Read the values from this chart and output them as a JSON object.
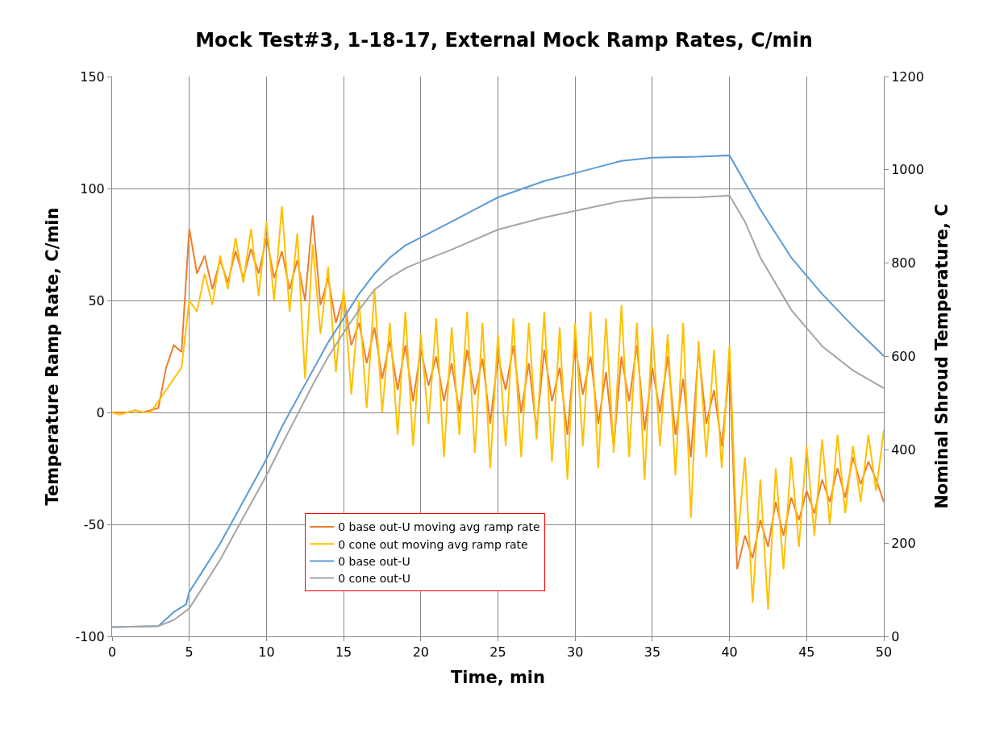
{
  "chart_data": {
    "type": "line",
    "title": "Mock Test#3, 1-18-17, External Mock Ramp Rates, C/min",
    "xlabel": "Time, min",
    "ylabel": "Temperature Ramp Rate, C/min",
    "y2label": "Nominal Shroud Temperature, C",
    "xlim": [
      0,
      50
    ],
    "xticks": [
      0,
      5,
      10,
      15,
      20,
      25,
      30,
      35,
      40,
      45,
      50
    ],
    "ylim": [
      -100,
      150
    ],
    "yticks": [
      -100,
      -50,
      0,
      50,
      100,
      150
    ],
    "y2lim": [
      0,
      1200
    ],
    "y2ticks": [
      0,
      200,
      400,
      600,
      800,
      1000,
      1200
    ],
    "grid": true,
    "legend": "bottom left",
    "marker": "none",
    "line_style": "solid",
    "series": [
      {
        "name": "0 base out-U moving avg ramp rate",
        "color": "#ed7d31",
        "x": [
          0,
          0.5,
          1,
          1.5,
          2,
          2.5,
          3,
          3.5,
          4,
          4.5,
          5,
          5.5,
          6,
          6.5,
          7,
          7.5,
          8,
          8.5,
          9,
          9.5,
          10,
          10.5,
          11,
          11.5,
          12,
          12.5,
          13,
          13.5,
          14,
          14.5,
          15,
          15.5,
          16,
          16.5,
          17,
          17.5,
          18,
          18.5,
          19,
          19.5,
          20,
          20.5,
          21,
          21.5,
          22,
          22.5,
          23,
          23.5,
          24,
          24.5,
          25,
          25.5,
          26,
          26.5,
          27,
          27.5,
          28,
          28.5,
          29,
          29.5,
          30,
          30.5,
          31,
          31.5,
          32,
          32.5,
          33,
          33.5,
          34,
          34.5,
          35,
          35.5,
          36,
          36.5,
          37,
          37.5,
          38,
          38.5,
          39,
          39.5,
          40,
          40.5,
          41,
          41.5,
          42,
          42.5,
          43,
          43.5,
          44,
          44.5,
          45,
          45.5,
          46,
          46.5,
          47,
          47.5,
          48,
          48.5,
          49,
          49.5,
          50
        ],
        "values": [
          0,
          0,
          0,
          1,
          0,
          1,
          2,
          20,
          30,
          27,
          82,
          62,
          70,
          55,
          68,
          58,
          72,
          60,
          73,
          62,
          78,
          60,
          72,
          55,
          68,
          50,
          88,
          48,
          60,
          40,
          52,
          30,
          40,
          22,
          38,
          15,
          32,
          10,
          30,
          5,
          28,
          12,
          25,
          5,
          22,
          0,
          28,
          8,
          24,
          -5,
          25,
          10,
          30,
          0,
          22,
          -8,
          28,
          5,
          20,
          -10,
          30,
          8,
          25,
          -5,
          18,
          -15,
          25,
          5,
          30,
          -8,
          20,
          0,
          25,
          -10,
          15,
          -20,
          28,
          -5,
          10,
          -15,
          20,
          -70,
          -55,
          -65,
          -48,
          -60,
          -40,
          -55,
          -38,
          -48,
          -35,
          -45,
          -30,
          -40,
          -25,
          -38,
          -20,
          -32,
          -22,
          -30,
          -40
        ]
      },
      {
        "name": "0 cone out moving avg ramp rate",
        "color": "#ffc000",
        "x": [
          0,
          0.5,
          1,
          1.5,
          2,
          2.5,
          3,
          3.5,
          4,
          4.5,
          5,
          5.5,
          6,
          6.5,
          7,
          7.5,
          8,
          8.5,
          9,
          9.5,
          10,
          10.5,
          11,
          11.5,
          12,
          12.5,
          13,
          13.5,
          14,
          14.5,
          15,
          15.5,
          16,
          16.5,
          17,
          17.5,
          18,
          18.5,
          19,
          19.5,
          20,
          20.5,
          21,
          21.5,
          22,
          22.5,
          23,
          23.5,
          24,
          24.5,
          25,
          25.5,
          26,
          26.5,
          27,
          27.5,
          28,
          28.5,
          29,
          29.5,
          30,
          30.5,
          31,
          31.5,
          32,
          32.5,
          33,
          33.5,
          34,
          34.5,
          35,
          35.5,
          36,
          36.5,
          37,
          37.5,
          38,
          38.5,
          39,
          39.5,
          40,
          40.5,
          41,
          41.5,
          42,
          42.5,
          43,
          43.5,
          44,
          44.5,
          45,
          45.5,
          46,
          46.5,
          47,
          47.5,
          48,
          48.5,
          49,
          49.5,
          50
        ],
        "values": [
          0,
          -1,
          0,
          1,
          0,
          0,
          5,
          10,
          15,
          20,
          50,
          45,
          62,
          48,
          70,
          55,
          78,
          58,
          82,
          52,
          85,
          50,
          92,
          45,
          80,
          15,
          75,
          35,
          65,
          18,
          55,
          8,
          50,
          2,
          55,
          0,
          40,
          -10,
          45,
          -15,
          35,
          -5,
          42,
          -20,
          38,
          -10,
          45,
          -18,
          40,
          -25,
          35,
          -15,
          42,
          -20,
          40,
          -12,
          45,
          -22,
          38,
          -30,
          40,
          -15,
          45,
          -25,
          42,
          -18,
          48,
          -20,
          40,
          -30,
          38,
          -15,
          35,
          -28,
          40,
          -47,
          32,
          -20,
          28,
          -25,
          30,
          -60,
          -20,
          -85,
          -30,
          -88,
          -25,
          -70,
          -20,
          -60,
          -15,
          -55,
          -12,
          -50,
          -10,
          -45,
          -15,
          -40,
          -10,
          -35,
          -8
        ]
      },
      {
        "name": "0 base out-U",
        "color": "#5b9bd5",
        "axis": "y2",
        "x": [
          0,
          3,
          4,
          4.8,
          5,
          6,
          7,
          8,
          9,
          10,
          11,
          12,
          13,
          14,
          15,
          16,
          17,
          18,
          19,
          20,
          22,
          25,
          28,
          30,
          33,
          35,
          38,
          40,
          42,
          44,
          46,
          48,
          50
        ],
        "values": [
          20,
          22,
          52,
          69,
          95,
          147,
          199,
          259,
          320,
          380,
          449,
          510,
          570,
          630,
          682,
          734,
          777,
          812,
          838,
          855,
          889,
          941,
          976,
          993,
          1019,
          1026,
          1028,
          1031,
          915,
          812,
          734,
          665,
          601
        ]
      },
      {
        "name": "0 cone out-U",
        "color": "#a5a5a5",
        "axis": "y2",
        "x": [
          0,
          3,
          4,
          5,
          6,
          7,
          8,
          9,
          10,
          11,
          12,
          13,
          14,
          15,
          16,
          17,
          18,
          19,
          20,
          22,
          25,
          28,
          30,
          33,
          35,
          38,
          40,
          41,
          42,
          44,
          46,
          48,
          50
        ],
        "values": [
          20,
          22,
          35,
          60,
          112,
          164,
          225,
          285,
          345,
          411,
          475,
          539,
          599,
          651,
          700,
          743,
          769,
          789,
          803,
          829,
          872,
          898,
          912,
          933,
          940,
          941,
          945,
          889,
          812,
          700,
          622,
          570,
          532
        ]
      }
    ]
  }
}
